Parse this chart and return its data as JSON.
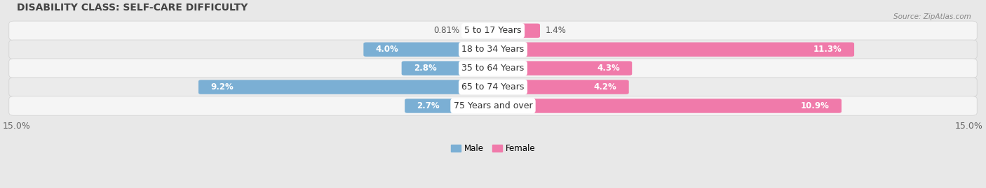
{
  "title": "DISABILITY CLASS: SELF-CARE DIFFICULTY",
  "source": "Source: ZipAtlas.com",
  "categories": [
    "5 to 17 Years",
    "18 to 34 Years",
    "35 to 64 Years",
    "65 to 74 Years",
    "75 Years and over"
  ],
  "male_values": [
    0.81,
    4.0,
    2.8,
    9.2,
    2.7
  ],
  "female_values": [
    1.4,
    11.3,
    4.3,
    4.2,
    10.9
  ],
  "male_labels": [
    "0.81%",
    "4.0%",
    "2.8%",
    "9.2%",
    "2.7%"
  ],
  "female_labels": [
    "1.4%",
    "11.3%",
    "4.3%",
    "4.2%",
    "10.9%"
  ],
  "male_color": "#7bafd4",
  "female_color": "#f07aaa",
  "max_val": 15.0,
  "background_color": "#e8e8e8",
  "row_bg_light": "#f2f2f2",
  "row_bg_dark": "#e0e0e0",
  "title_fontsize": 10,
  "label_fontsize": 8.5,
  "cat_fontsize": 9,
  "axis_label_fontsize": 9
}
